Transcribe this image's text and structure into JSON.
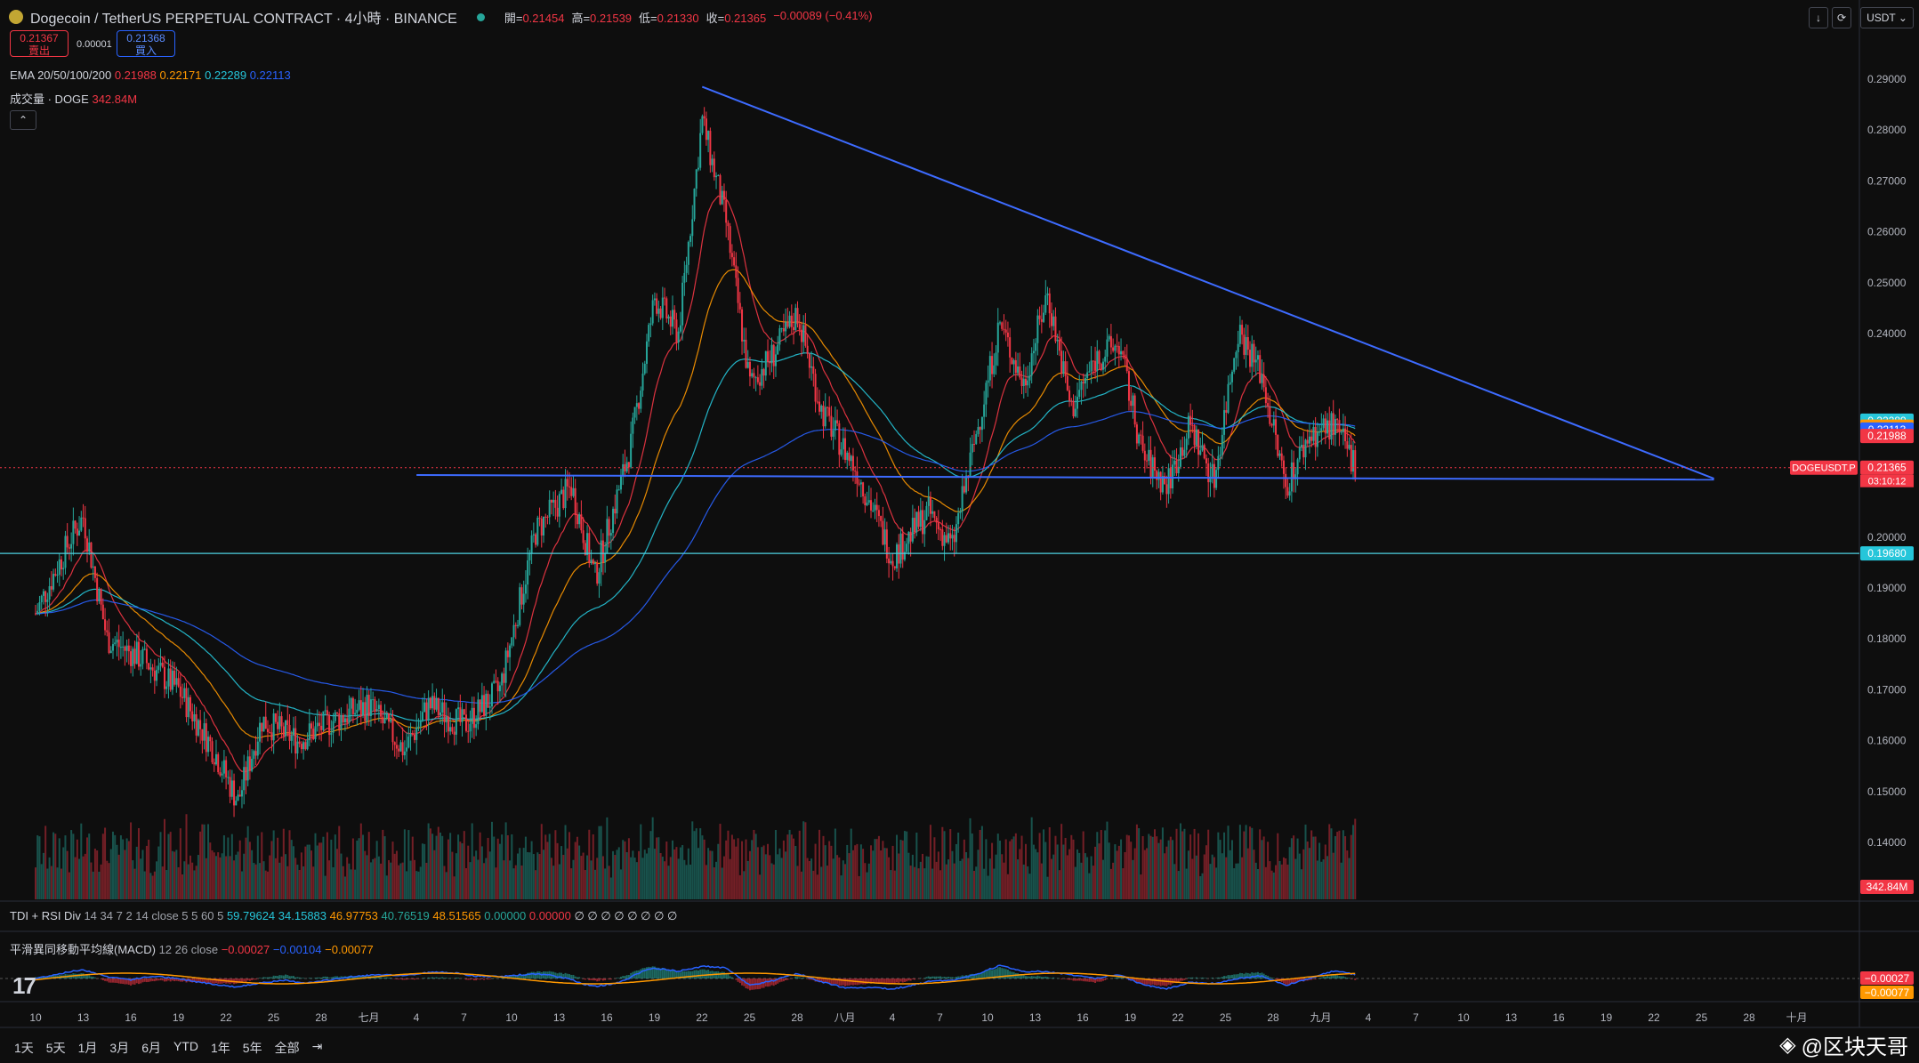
{
  "header": {
    "title": "Dogecoin / TetherUS PERPETUAL CONTRACT · 4小時 · BINANCE",
    "open_label": "開=",
    "open": "0.21454",
    "high_label": "高=",
    "high": "0.21539",
    "low_label": "低=",
    "low": "0.21330",
    "close_label": "收=",
    "close": "0.21365",
    "change": "−0.00089 (−0.41%)"
  },
  "trade": {
    "sell_price": "0.21367",
    "sell_label": "賣出",
    "spread": "0.00001",
    "buy_price": "0.21368",
    "buy_label": "買入"
  },
  "indicators": {
    "ema_label": "EMA 20/50/100/200",
    "ema_values": [
      "0.21988",
      "0.22171",
      "0.22289",
      "0.22113"
    ],
    "volume_label": "成交量 · DOGE",
    "volume_value": "342.84M",
    "tdi_label": "TDI + RSI Div",
    "tdi_params": "14 34 7 2 14 close 5 5 60 5",
    "tdi_values": [
      "59.79624",
      "34.15883",
      "46.97753",
      "40.76519",
      "48.51565",
      "0.00000",
      "0.00000",
      "∅ ∅ ∅ ∅ ∅ ∅ ∅ ∅"
    ],
    "macd_label": "平滑異同移動平均線(MACD)",
    "macd_params": "12 26 close",
    "macd_values": [
      "−0.00027",
      "−0.00104",
      "−0.00077"
    ]
  },
  "toolbar": {
    "currency": "USDT"
  },
  "timeframes": [
    "1天",
    "5天",
    "1月",
    "3月",
    "6月",
    "YTD",
    "1年",
    "5年",
    "全部"
  ],
  "watermark": "@区块天哥",
  "colors": {
    "up": "#26a69a",
    "down": "#f23645",
    "ema20": "#f23645",
    "ema50": "#ff9800",
    "ema100": "#26c6da",
    "ema200": "#2962ff",
    "trendline": "#3d6bff",
    "support": "#4dd0e1"
  },
  "chart_data": {
    "type": "candlestick",
    "symbol_label": "DOGEUSDT.P",
    "countdown": "03:10:12",
    "y_ticks": [
      "0.29000",
      "0.28000",
      "0.27000",
      "0.26000",
      "0.25000",
      "0.24000",
      "0.20000",
      "0.19000",
      "0.18000",
      "0.17000",
      "0.16000",
      "0.15000",
      "0.14000"
    ],
    "x_ticks": [
      "10",
      "13",
      "16",
      "19",
      "22",
      "25",
      "28",
      "七月",
      "4",
      "7",
      "10",
      "13",
      "16",
      "19",
      "22",
      "25",
      "28",
      "八月",
      "4",
      "7",
      "10",
      "13",
      "16",
      "19",
      "22",
      "25",
      "28",
      "九月",
      "4",
      "7",
      "10",
      "13",
      "16",
      "19",
      "22",
      "25",
      "28",
      "十月"
    ],
    "price_tags": [
      {
        "value": "0.22289",
        "price": 0.22289,
        "color": "#26c6da"
      },
      {
        "value": "0.22171",
        "price": 0.22171,
        "color": "#ff9800"
      },
      {
        "value": "0.22113",
        "price": 0.22113,
        "color": "#2962ff"
      },
      {
        "value": "0.21988",
        "price": 0.21988,
        "color": "#f23645"
      },
      {
        "value": "0.21365",
        "price": 0.21365,
        "color": "#f23645"
      },
      {
        "value": "0.19680",
        "price": 0.1968,
        "color": "#26c6da"
      }
    ],
    "volume_tag": "342.84M",
    "macd_tags": [
      "−0.00027",
      "−0.00077"
    ],
    "close_series": [
      {
        "d": 0,
        "c": 0.185
      },
      {
        "d": 3,
        "c": 0.2
      },
      {
        "d": 4,
        "c": 0.204
      },
      {
        "d": 6,
        "c": 0.18
      },
      {
        "d": 9,
        "c": 0.176
      },
      {
        "d": 12,
        "c": 0.17
      },
      {
        "d": 15,
        "c": 0.158
      },
      {
        "d": 17,
        "c": 0.148
      },
      {
        "d": 19,
        "c": 0.164
      },
      {
        "d": 22,
        "c": 0.16
      },
      {
        "d": 25,
        "c": 0.164
      },
      {
        "d": 28,
        "c": 0.167
      },
      {
        "d": 31,
        "c": 0.158
      },
      {
        "d": 33,
        "c": 0.167
      },
      {
        "d": 36,
        "c": 0.163
      },
      {
        "d": 39,
        "c": 0.17
      },
      {
        "d": 42,
        "c": 0.201
      },
      {
        "d": 45,
        "c": 0.21
      },
      {
        "d": 47,
        "c": 0.192
      },
      {
        "d": 50,
        "c": 0.218
      },
      {
        "d": 52,
        "c": 0.247
      },
      {
        "d": 54,
        "c": 0.24
      },
      {
        "d": 56,
        "c": 0.282
      },
      {
        "d": 58,
        "c": 0.262
      },
      {
        "d": 60,
        "c": 0.23
      },
      {
        "d": 62,
        "c": 0.236
      },
      {
        "d": 64,
        "c": 0.244
      },
      {
        "d": 66,
        "c": 0.225
      },
      {
        "d": 69,
        "c": 0.213
      },
      {
        "d": 72,
        "c": 0.196
      },
      {
        "d": 75,
        "c": 0.205
      },
      {
        "d": 77,
        "c": 0.198
      },
      {
        "d": 79,
        "c": 0.22
      },
      {
        "d": 81,
        "c": 0.242
      },
      {
        "d": 83,
        "c": 0.23
      },
      {
        "d": 85,
        "c": 0.248
      },
      {
        "d": 87,
        "c": 0.225
      },
      {
        "d": 89,
        "c": 0.235
      },
      {
        "d": 91,
        "c": 0.238
      },
      {
        "d": 93,
        "c": 0.216
      },
      {
        "d": 95,
        "c": 0.21
      },
      {
        "d": 97,
        "c": 0.222
      },
      {
        "d": 99,
        "c": 0.211
      },
      {
        "d": 101,
        "c": 0.241
      },
      {
        "d": 103,
        "c": 0.232
      },
      {
        "d": 105,
        "c": 0.21
      },
      {
        "d": 107,
        "c": 0.22
      },
      {
        "d": 109,
        "c": 0.222
      },
      {
        "d": 111,
        "c": 0.2137
      }
    ],
    "trendlines": [
      {
        "name": "descending-resistance",
        "from": {
          "d": 56,
          "p": 0.2885
        },
        "to": {
          "d": 141,
          "p": 0.2115
        }
      },
      {
        "name": "horizontal-support",
        "from": {
          "d": 32,
          "p": 0.2122
        },
        "to": {
          "d": 141,
          "p": 0.2113
        }
      }
    ],
    "support_level": 0.1968,
    "current_price": 0.21365
  }
}
